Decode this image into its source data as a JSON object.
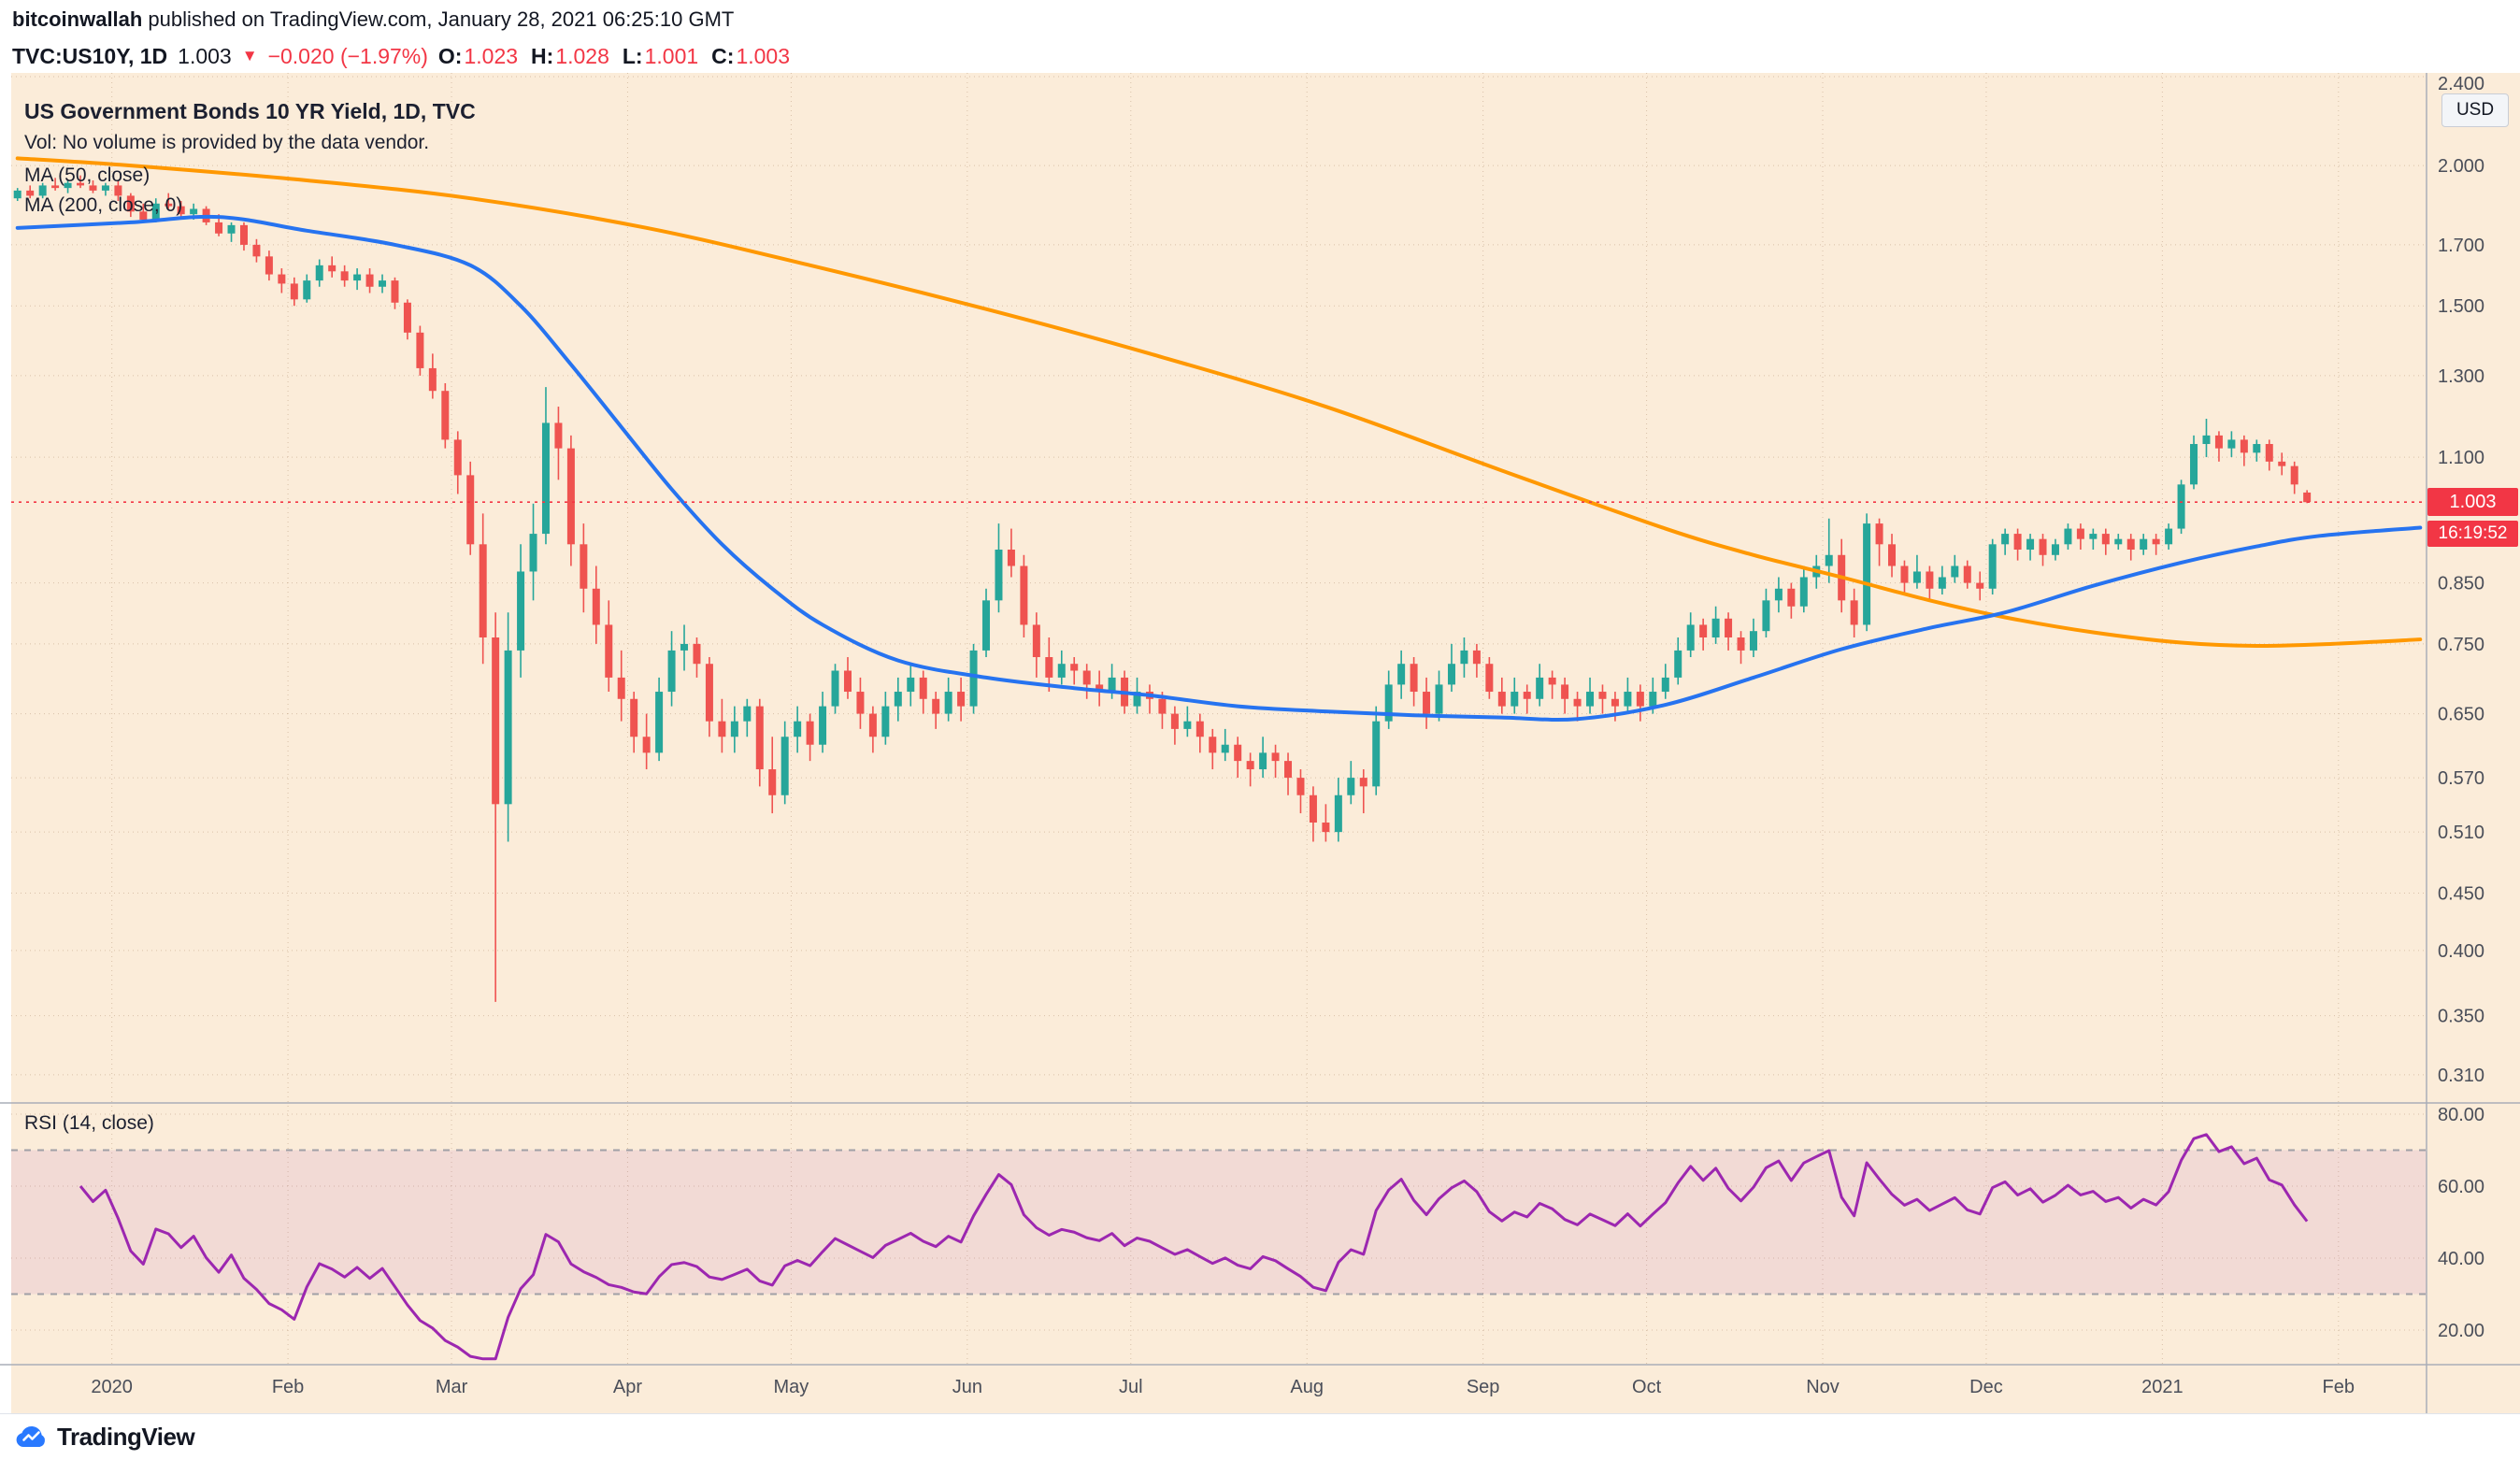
{
  "attribution": {
    "author": "bitcoinwallah",
    "rest": "published on TradingView.com, January 28, 2021 06:25:10 GMT"
  },
  "quote_bar": {
    "symbol_interval": "TVC:US10Y, 1D",
    "last": "1.003",
    "direction": "▼",
    "change": "−0.020 (−1.97%)",
    "ohlc": [
      {
        "label": "O:",
        "value": "1.023"
      },
      {
        "label": "H:",
        "value": "1.028"
      },
      {
        "label": "L:",
        "value": "1.001"
      },
      {
        "label": "C:",
        "value": "1.003"
      }
    ]
  },
  "legend": {
    "title": "US Government Bonds 10 YR Yield, 1D, TVC",
    "vol_note": "Vol: No volume is provided by the data vendor.",
    "ma_fast_label": "MA (50, close)",
    "ma_slow_label": "MA (200, close, 0)",
    "rsi_label": "RSI (14, close)"
  },
  "price_axis": {
    "currency": "USD",
    "ticks": [
      2.4,
      2.0,
      1.7,
      1.5,
      1.3,
      1.1,
      0.85,
      0.75,
      0.65,
      0.57,
      0.51,
      0.45,
      0.4,
      0.35,
      0.31
    ],
    "last_price": "1.003",
    "countdown": "16:19:52"
  },
  "rsi": {
    "ticks": [
      80,
      60,
      40,
      20
    ],
    "upper_band": 70,
    "lower_band": 30
  },
  "time_axis": [
    {
      "label": "2020",
      "bar": 8
    },
    {
      "label": "Feb",
      "bar": 22
    },
    {
      "label": "Mar",
      "bar": 35
    },
    {
      "label": "Apr",
      "bar": 49
    },
    {
      "label": "May",
      "bar": 62
    },
    {
      "label": "Jun",
      "bar": 76
    },
    {
      "label": "Jul",
      "bar": 89
    },
    {
      "label": "Aug",
      "bar": 103
    },
    {
      "label": "Sep",
      "bar": 117
    },
    {
      "label": "Oct",
      "bar": 130
    },
    {
      "label": "Nov",
      "bar": 144
    },
    {
      "label": "Dec",
      "bar": 157
    },
    {
      "label": "2021",
      "bar": 171
    },
    {
      "label": "Feb",
      "bar": 185
    }
  ],
  "footer": {
    "brand": "TradingView"
  },
  "colors": {
    "background": "#fbecd9",
    "up": "#26a69a",
    "down": "#ef5350",
    "ma_fast": "#2673f0",
    "ma_slow": "#ff9800",
    "rsi": "#9c27b0",
    "accent_red": "#f23645",
    "grid": "#b08e6e",
    "axis_text": "#4a4e59",
    "separator": "#a9adb8"
  },
  "chart_data": {
    "type": "candlestick",
    "title": "US Government Bonds 10 YR Yield, 1D, TVC",
    "yscale": "log",
    "ylim": [
      0.293,
      2.418
    ],
    "total_slots": 192,
    "last_price": 1.003,
    "candles": [
      [
        1.87,
        1.91,
        1.86,
        1.9
      ],
      [
        1.9,
        1.92,
        1.87,
        1.88
      ],
      [
        1.88,
        1.93,
        1.87,
        1.92
      ],
      [
        1.92,
        1.95,
        1.9,
        1.91
      ],
      [
        1.91,
        1.94,
        1.89,
        1.93
      ],
      [
        1.93,
        1.96,
        1.91,
        1.92
      ],
      [
        1.92,
        1.94,
        1.89,
        1.9
      ],
      [
        1.9,
        1.93,
        1.88,
        1.92
      ],
      [
        1.92,
        1.94,
        1.86,
        1.88
      ],
      [
        1.88,
        1.89,
        1.8,
        1.82
      ],
      [
        1.82,
        1.85,
        1.78,
        1.79
      ],
      [
        1.79,
        1.87,
        1.78,
        1.85
      ],
      [
        1.85,
        1.89,
        1.83,
        1.84
      ],
      [
        1.84,
        1.86,
        1.8,
        1.81
      ],
      [
        1.81,
        1.85,
        1.79,
        1.83
      ],
      [
        1.83,
        1.84,
        1.77,
        1.78
      ],
      [
        1.78,
        1.81,
        1.73,
        1.74
      ],
      [
        1.74,
        1.78,
        1.71,
        1.77
      ],
      [
        1.77,
        1.78,
        1.68,
        1.7
      ],
      [
        1.7,
        1.72,
        1.64,
        1.66
      ],
      [
        1.66,
        1.68,
        1.58,
        1.6
      ],
      [
        1.6,
        1.62,
        1.54,
        1.57
      ],
      [
        1.57,
        1.59,
        1.5,
        1.52
      ],
      [
        1.52,
        1.6,
        1.51,
        1.58
      ],
      [
        1.58,
        1.65,
        1.56,
        1.63
      ],
      [
        1.63,
        1.66,
        1.59,
        1.61
      ],
      [
        1.61,
        1.63,
        1.56,
        1.58
      ],
      [
        1.58,
        1.62,
        1.55,
        1.6
      ],
      [
        1.6,
        1.62,
        1.54,
        1.56
      ],
      [
        1.56,
        1.6,
        1.54,
        1.58
      ],
      [
        1.58,
        1.59,
        1.49,
        1.51
      ],
      [
        1.51,
        1.52,
        1.4,
        1.42
      ],
      [
        1.42,
        1.44,
        1.3,
        1.32
      ],
      [
        1.32,
        1.36,
        1.24,
        1.26
      ],
      [
        1.26,
        1.28,
        1.12,
        1.14
      ],
      [
        1.14,
        1.16,
        1.02,
        1.06
      ],
      [
        1.06,
        1.09,
        0.9,
        0.92
      ],
      [
        0.92,
        0.98,
        0.72,
        0.76
      ],
      [
        0.76,
        0.8,
        0.36,
        0.54
      ],
      [
        0.54,
        0.8,
        0.5,
        0.74
      ],
      [
        0.74,
        0.92,
        0.7,
        0.87
      ],
      [
        0.87,
        1.0,
        0.82,
        0.94
      ],
      [
        0.94,
        1.27,
        0.92,
        1.18
      ],
      [
        1.18,
        1.22,
        1.05,
        1.12
      ],
      [
        1.12,
        1.15,
        0.88,
        0.92
      ],
      [
        0.92,
        0.96,
        0.8,
        0.84
      ],
      [
        0.84,
        0.88,
        0.75,
        0.78
      ],
      [
        0.78,
        0.82,
        0.68,
        0.7
      ],
      [
        0.7,
        0.74,
        0.64,
        0.67
      ],
      [
        0.67,
        0.68,
        0.6,
        0.62
      ],
      [
        0.62,
        0.65,
        0.58,
        0.6
      ],
      [
        0.6,
        0.7,
        0.59,
        0.68
      ],
      [
        0.68,
        0.77,
        0.66,
        0.74
      ],
      [
        0.74,
        0.78,
        0.71,
        0.75
      ],
      [
        0.75,
        0.76,
        0.7,
        0.72
      ],
      [
        0.72,
        0.73,
        0.62,
        0.64
      ],
      [
        0.64,
        0.67,
        0.6,
        0.62
      ],
      [
        0.62,
        0.66,
        0.6,
        0.64
      ],
      [
        0.64,
        0.67,
        0.62,
        0.66
      ],
      [
        0.66,
        0.67,
        0.56,
        0.58
      ],
      [
        0.58,
        0.62,
        0.53,
        0.55
      ],
      [
        0.55,
        0.64,
        0.54,
        0.62
      ],
      [
        0.62,
        0.66,
        0.6,
        0.64
      ],
      [
        0.64,
        0.65,
        0.59,
        0.61
      ],
      [
        0.61,
        0.68,
        0.6,
        0.66
      ],
      [
        0.66,
        0.72,
        0.65,
        0.71
      ],
      [
        0.71,
        0.73,
        0.67,
        0.68
      ],
      [
        0.68,
        0.7,
        0.63,
        0.65
      ],
      [
        0.65,
        0.66,
        0.6,
        0.62
      ],
      [
        0.62,
        0.68,
        0.61,
        0.66
      ],
      [
        0.66,
        0.7,
        0.64,
        0.68
      ],
      [
        0.68,
        0.72,
        0.66,
        0.7
      ],
      [
        0.7,
        0.71,
        0.65,
        0.67
      ],
      [
        0.67,
        0.68,
        0.63,
        0.65
      ],
      [
        0.65,
        0.7,
        0.64,
        0.68
      ],
      [
        0.68,
        0.7,
        0.64,
        0.66
      ],
      [
        0.66,
        0.75,
        0.65,
        0.74
      ],
      [
        0.74,
        0.84,
        0.73,
        0.82
      ],
      [
        0.82,
        0.96,
        0.8,
        0.91
      ],
      [
        0.91,
        0.95,
        0.86,
        0.88
      ],
      [
        0.88,
        0.9,
        0.76,
        0.78
      ],
      [
        0.78,
        0.8,
        0.7,
        0.73
      ],
      [
        0.73,
        0.76,
        0.68,
        0.7
      ],
      [
        0.7,
        0.74,
        0.69,
        0.72
      ],
      [
        0.72,
        0.73,
        0.69,
        0.71
      ],
      [
        0.71,
        0.72,
        0.67,
        0.69
      ],
      [
        0.69,
        0.71,
        0.66,
        0.68
      ],
      [
        0.68,
        0.72,
        0.67,
        0.7
      ],
      [
        0.7,
        0.71,
        0.65,
        0.66
      ],
      [
        0.66,
        0.7,
        0.65,
        0.68
      ],
      [
        0.68,
        0.69,
        0.65,
        0.67
      ],
      [
        0.67,
        0.68,
        0.63,
        0.65
      ],
      [
        0.65,
        0.66,
        0.61,
        0.63
      ],
      [
        0.63,
        0.66,
        0.62,
        0.64
      ],
      [
        0.64,
        0.65,
        0.6,
        0.62
      ],
      [
        0.62,
        0.63,
        0.58,
        0.6
      ],
      [
        0.6,
        0.63,
        0.59,
        0.61
      ],
      [
        0.61,
        0.62,
        0.57,
        0.59
      ],
      [
        0.59,
        0.6,
        0.56,
        0.58
      ],
      [
        0.58,
        0.62,
        0.57,
        0.6
      ],
      [
        0.6,
        0.61,
        0.57,
        0.59
      ],
      [
        0.59,
        0.6,
        0.55,
        0.57
      ],
      [
        0.57,
        0.58,
        0.53,
        0.55
      ],
      [
        0.55,
        0.56,
        0.5,
        0.52
      ],
      [
        0.52,
        0.54,
        0.5,
        0.51
      ],
      [
        0.51,
        0.57,
        0.5,
        0.55
      ],
      [
        0.55,
        0.59,
        0.54,
        0.57
      ],
      [
        0.57,
        0.58,
        0.53,
        0.56
      ],
      [
        0.56,
        0.66,
        0.55,
        0.64
      ],
      [
        0.64,
        0.71,
        0.63,
        0.69
      ],
      [
        0.69,
        0.74,
        0.67,
        0.72
      ],
      [
        0.72,
        0.73,
        0.66,
        0.68
      ],
      [
        0.68,
        0.7,
        0.63,
        0.65
      ],
      [
        0.65,
        0.71,
        0.64,
        0.69
      ],
      [
        0.69,
        0.75,
        0.68,
        0.72
      ],
      [
        0.72,
        0.76,
        0.7,
        0.74
      ],
      [
        0.74,
        0.75,
        0.7,
        0.72
      ],
      [
        0.72,
        0.73,
        0.67,
        0.68
      ],
      [
        0.68,
        0.7,
        0.65,
        0.66
      ],
      [
        0.66,
        0.7,
        0.65,
        0.68
      ],
      [
        0.68,
        0.69,
        0.65,
        0.67
      ],
      [
        0.67,
        0.72,
        0.66,
        0.7
      ],
      [
        0.7,
        0.71,
        0.67,
        0.69
      ],
      [
        0.69,
        0.7,
        0.65,
        0.67
      ],
      [
        0.67,
        0.68,
        0.64,
        0.66
      ],
      [
        0.66,
        0.7,
        0.65,
        0.68
      ],
      [
        0.68,
        0.69,
        0.65,
        0.67
      ],
      [
        0.67,
        0.68,
        0.64,
        0.66
      ],
      [
        0.66,
        0.7,
        0.65,
        0.68
      ],
      [
        0.68,
        0.69,
        0.64,
        0.66
      ],
      [
        0.66,
        0.7,
        0.65,
        0.68
      ],
      [
        0.68,
        0.72,
        0.67,
        0.7
      ],
      [
        0.7,
        0.76,
        0.69,
        0.74
      ],
      [
        0.74,
        0.8,
        0.73,
        0.78
      ],
      [
        0.78,
        0.79,
        0.74,
        0.76
      ],
      [
        0.76,
        0.81,
        0.75,
        0.79
      ],
      [
        0.79,
        0.8,
        0.74,
        0.76
      ],
      [
        0.76,
        0.77,
        0.72,
        0.74
      ],
      [
        0.74,
        0.79,
        0.73,
        0.77
      ],
      [
        0.77,
        0.84,
        0.76,
        0.82
      ],
      [
        0.82,
        0.86,
        0.8,
        0.84
      ],
      [
        0.84,
        0.85,
        0.79,
        0.81
      ],
      [
        0.81,
        0.88,
        0.8,
        0.86
      ],
      [
        0.86,
        0.9,
        0.84,
        0.88
      ],
      [
        0.88,
        0.97,
        0.85,
        0.9
      ],
      [
        0.9,
        0.93,
        0.8,
        0.82
      ],
      [
        0.82,
        0.84,
        0.76,
        0.78
      ],
      [
        0.78,
        0.98,
        0.77,
        0.96
      ],
      [
        0.96,
        0.97,
        0.88,
        0.92
      ],
      [
        0.92,
        0.94,
        0.86,
        0.88
      ],
      [
        0.88,
        0.89,
        0.83,
        0.85
      ],
      [
        0.85,
        0.9,
        0.84,
        0.87
      ],
      [
        0.87,
        0.88,
        0.82,
        0.84
      ],
      [
        0.84,
        0.88,
        0.83,
        0.86
      ],
      [
        0.86,
        0.9,
        0.85,
        0.88
      ],
      [
        0.88,
        0.89,
        0.84,
        0.85
      ],
      [
        0.85,
        0.87,
        0.82,
        0.84
      ],
      [
        0.84,
        0.93,
        0.83,
        0.92
      ],
      [
        0.92,
        0.95,
        0.9,
        0.94
      ],
      [
        0.94,
        0.95,
        0.89,
        0.91
      ],
      [
        0.91,
        0.94,
        0.89,
        0.93
      ],
      [
        0.93,
        0.94,
        0.88,
        0.9
      ],
      [
        0.9,
        0.93,
        0.89,
        0.92
      ],
      [
        0.92,
        0.96,
        0.91,
        0.95
      ],
      [
        0.95,
        0.96,
        0.91,
        0.93
      ],
      [
        0.93,
        0.95,
        0.91,
        0.94
      ],
      [
        0.94,
        0.95,
        0.9,
        0.92
      ],
      [
        0.92,
        0.94,
        0.91,
        0.93
      ],
      [
        0.93,
        0.94,
        0.89,
        0.91
      ],
      [
        0.91,
        0.94,
        0.9,
        0.93
      ],
      [
        0.93,
        0.94,
        0.9,
        0.92
      ],
      [
        0.92,
        0.96,
        0.91,
        0.95
      ],
      [
        0.95,
        1.05,
        0.94,
        1.04
      ],
      [
        1.04,
        1.15,
        1.03,
        1.13
      ],
      [
        1.13,
        1.19,
        1.1,
        1.15
      ],
      [
        1.15,
        1.16,
        1.09,
        1.12
      ],
      [
        1.12,
        1.16,
        1.1,
        1.14
      ],
      [
        1.14,
        1.15,
        1.08,
        1.11
      ],
      [
        1.11,
        1.14,
        1.09,
        1.13
      ],
      [
        1.13,
        1.14,
        1.07,
        1.09
      ],
      [
        1.09,
        1.11,
        1.06,
        1.08
      ],
      [
        1.08,
        1.09,
        1.02,
        1.04
      ],
      [
        1.023,
        1.028,
        1.001,
        1.003
      ]
    ],
    "overlays": [
      {
        "name": "MA (50, close)",
        "type": "line",
        "color": "#2673f0",
        "points": [
          [
            0,
            1.76
          ],
          [
            9,
            1.78
          ],
          [
            16,
            1.8
          ],
          [
            23,
            1.75
          ],
          [
            30,
            1.7
          ],
          [
            36,
            1.63
          ],
          [
            40,
            1.5
          ],
          [
            44,
            1.33
          ],
          [
            48,
            1.17
          ],
          [
            52,
            1.03
          ],
          [
            56,
            0.92
          ],
          [
            60,
            0.84
          ],
          [
            64,
            0.78
          ],
          [
            70,
            0.725
          ],
          [
            77,
            0.7
          ],
          [
            84,
            0.685
          ],
          [
            90,
            0.675
          ],
          [
            97,
            0.66
          ],
          [
            104,
            0.653
          ],
          [
            111,
            0.648
          ],
          [
            118,
            0.645
          ],
          [
            124,
            0.643
          ],
          [
            131,
            0.662
          ],
          [
            138,
            0.7
          ],
          [
            145,
            0.742
          ],
          [
            152,
            0.775
          ],
          [
            158,
            0.8
          ],
          [
            165,
            0.845
          ],
          [
            172,
            0.886
          ],
          [
            178,
            0.916
          ],
          [
            183,
            0.936
          ],
          [
            191,
            0.952
          ]
        ]
      },
      {
        "name": "MA (200, close, 0)",
        "type": "line",
        "color": "#ff9800",
        "points": [
          [
            0,
            2.03
          ],
          [
            9,
            2.0
          ],
          [
            23,
            1.94
          ],
          [
            36,
            1.87
          ],
          [
            50,
            1.76
          ],
          [
            63,
            1.63
          ],
          [
            77,
            1.49
          ],
          [
            90,
            1.36
          ],
          [
            104,
            1.22
          ],
          [
            118,
            1.07
          ],
          [
            131,
            0.95
          ],
          [
            138,
            0.9
          ],
          [
            145,
            0.86
          ],
          [
            152,
            0.82
          ],
          [
            158,
            0.792
          ],
          [
            165,
            0.768
          ],
          [
            172,
            0.752
          ],
          [
            178,
            0.747
          ],
          [
            184,
            0.75
          ],
          [
            191,
            0.757
          ]
        ]
      }
    ],
    "indicator": {
      "name": "RSI",
      "period": 14,
      "source": "close",
      "color": "#9c27b0",
      "bands": [
        70,
        30
      ],
      "range_hint": [
        10,
        83
      ]
    }
  }
}
